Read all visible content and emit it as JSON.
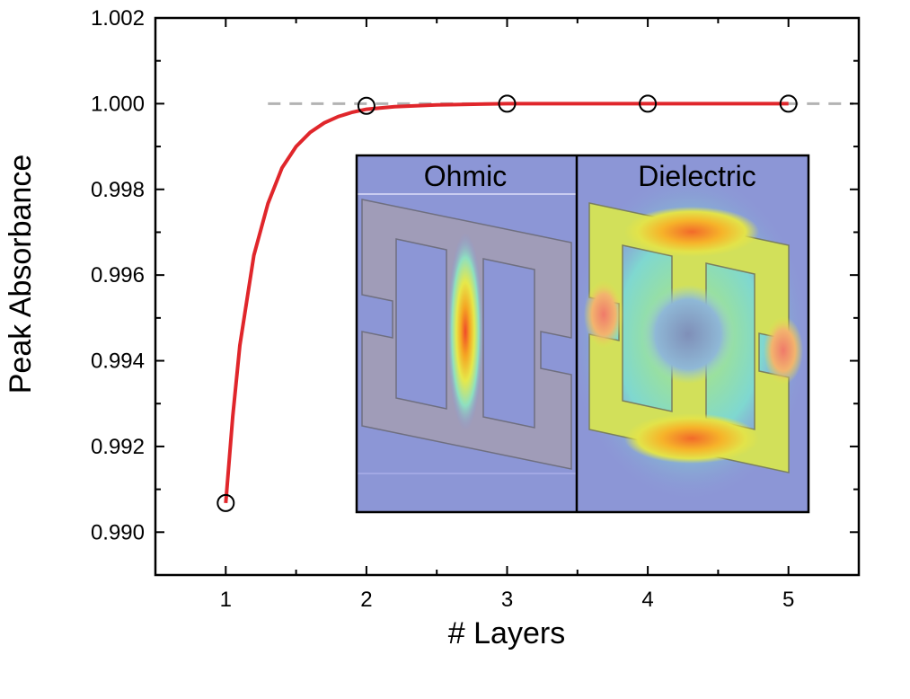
{
  "chart_data": {
    "type": "scatter",
    "title": "",
    "xlabel": "# Layers",
    "ylabel": "Peak Absorbance",
    "xlim": [
      0.5,
      5.5
    ],
    "ylim": [
      0.989,
      1.002
    ],
    "x_ticks": [
      1,
      2,
      3,
      4,
      5
    ],
    "y_ticks": [
      0.99,
      0.992,
      0.994,
      0.996,
      0.998,
      1.0,
      1.002
    ],
    "y_tick_labels": [
      "0.990",
      "0.992",
      "0.994",
      "0.996",
      "0.998",
      "1.000",
      "1.002"
    ],
    "grid": false,
    "reference_line": {
      "y": 1.0,
      "style": "dashed",
      "color": "#b3b3b3"
    },
    "series": [
      {
        "kind": "markers",
        "marker": "open-circle",
        "color": "#000000",
        "x": [
          1,
          2,
          3,
          4,
          5
        ],
        "y": [
          0.99068,
          0.99995,
          1.0,
          1.0,
          1.0
        ]
      },
      {
        "kind": "fit-curve",
        "color": "#e0262b",
        "x": [
          1,
          1.05,
          1.1,
          1.2,
          1.3,
          1.4,
          1.5,
          1.6,
          1.7,
          1.8,
          1.9,
          2,
          2.2,
          2.5,
          2.8,
          3,
          3.5,
          4,
          4.5,
          5
        ],
        "y": [
          0.99068,
          0.9927,
          0.99436,
          0.99646,
          0.99767,
          0.9985,
          0.999,
          0.99933,
          0.99955,
          0.9997,
          0.9998,
          0.99987,
          0.99993,
          0.99997,
          0.99999,
          1.0,
          1.0,
          1.0,
          1.0,
          1.0
        ]
      }
    ],
    "inset": {
      "panels": [
        {
          "title": "Ohmic",
          "background": "#8c96d6"
        },
        {
          "title": "Dielectric",
          "background": "#8c96d6"
        }
      ]
    }
  }
}
